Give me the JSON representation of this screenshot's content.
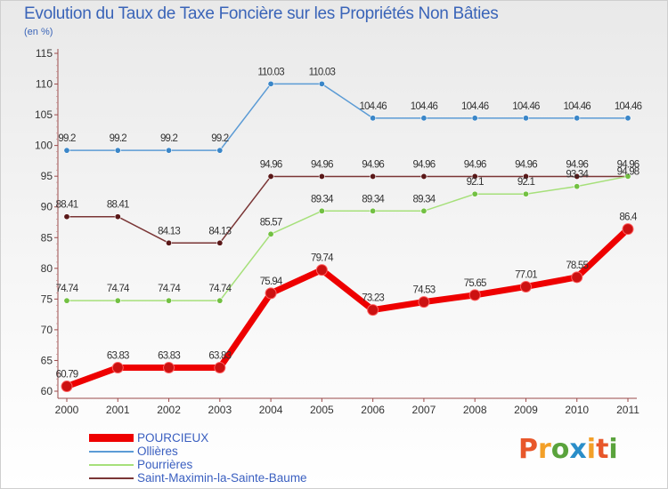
{
  "header": {
    "title": "Evolution du Taux de Taxe Foncière sur les Propriétés Non Bâties",
    "unit": "(en %)"
  },
  "logo": {
    "text": "Proxiti",
    "colors": [
      "#e8572a",
      "#f3a028",
      "#5aa33c",
      "#2a8ec9",
      "#f3a028",
      "#e8572a",
      "#5aa33c"
    ]
  },
  "chart_data": {
    "type": "line",
    "title": "Evolution du Taux de Taxe Foncière sur les Propriétés Non Bâties",
    "ylabel": "(en %)",
    "xlabel": "",
    "ylim": [
      60,
      115
    ],
    "yticks": [
      60,
      65,
      70,
      75,
      80,
      85,
      90,
      95,
      100,
      105,
      110,
      115
    ],
    "grid": false,
    "legend_position": "bottom-left",
    "x": [
      "2000",
      "2001",
      "2002",
      "2003",
      "2004",
      "2005",
      "2006",
      "2007",
      "2008",
      "2009",
      "2010",
      "2011"
    ],
    "series": [
      {
        "name": "POURCIEUX",
        "color": "#ee0000",
        "marker": "#cc1111",
        "values": [
          60.79,
          63.83,
          63.83,
          63.83,
          75.94,
          79.74,
          73.23,
          74.53,
          75.65,
          77.01,
          78.55,
          86.4
        ],
        "labels": [
          "60.79",
          "63.83",
          "63.83",
          "63.83",
          "75.94",
          "79.74",
          "73.23",
          "74.53",
          "75.65",
          "77.01",
          "78.55",
          "86.4"
        ]
      },
      {
        "name": "Ollières",
        "color": "#5b9bd5",
        "marker": "#3a86c8",
        "values": [
          99.2,
          99.2,
          99.2,
          99.2,
          110.03,
          110.03,
          104.46,
          104.46,
          104.46,
          104.46,
          104.46,
          104.46
        ],
        "labels": [
          "99.2",
          "99.2",
          "99.2",
          "99.2",
          "110.03",
          "110.03",
          "104.46",
          "104.46",
          "104.46",
          "104.46",
          "104.46",
          "104.46"
        ]
      },
      {
        "name": "Pourrières",
        "color": "#a6e07a",
        "marker": "#72c042",
        "values": [
          74.74,
          74.74,
          74.74,
          74.74,
          85.57,
          89.34,
          89.34,
          89.34,
          92.1,
          92.1,
          93.34,
          94.98
        ],
        "labels": [
          "74.74",
          "74.74",
          "74.74",
          "74.74",
          "85.57",
          "89.34",
          "89.34",
          "89.34",
          "92.1",
          "92.1",
          "93.34",
          "94.98"
        ]
      },
      {
        "name": "Saint-Maximin-la-Sainte-Baume",
        "color": "#7a3535",
        "marker": "#5a1818",
        "values": [
          88.41,
          88.41,
          84.13,
          84.13,
          94.96,
          94.96,
          94.96,
          94.96,
          94.96,
          94.96,
          94.96,
          94.96
        ],
        "labels": [
          "88.41",
          "88.41",
          "84.13",
          "84.13",
          "94.96",
          "94.96",
          "94.96",
          "94.96",
          "94.96",
          "94.96",
          "94.96",
          "94.96"
        ]
      }
    ]
  }
}
